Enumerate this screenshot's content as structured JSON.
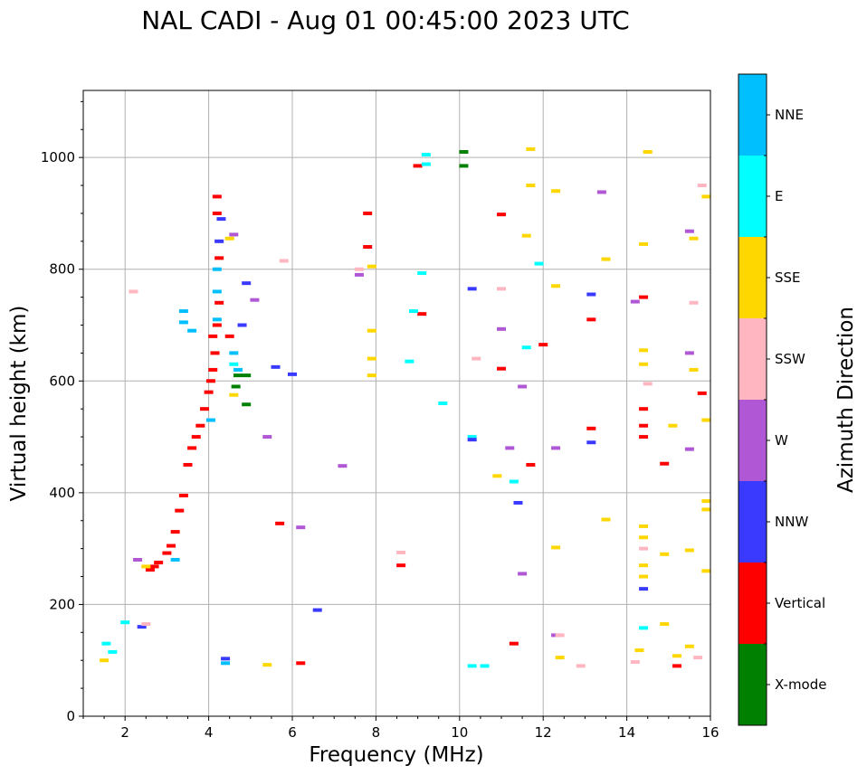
{
  "chart_data": {
    "type": "scatter",
    "title": "NAL CADI - Aug 01 00:45:00 2023 UTC",
    "xlabel": "Frequency (MHz)",
    "ylabel": "Virtual height (km)",
    "xlim": [
      1,
      16
    ],
    "ylim": [
      0,
      1120
    ],
    "xticks": [
      2,
      4,
      6,
      8,
      10,
      12,
      14,
      16
    ],
    "yticks": [
      0,
      200,
      400,
      600,
      800,
      1000
    ],
    "grid": true,
    "colorbar": {
      "label": "Azimuth Direction",
      "categories": [
        {
          "name": "X-mode",
          "color": "#008000"
        },
        {
          "name": "Vertical",
          "color": "#ff0000"
        },
        {
          "name": "NNW",
          "color": "#3a3aff"
        },
        {
          "name": "W",
          "color": "#b057d6"
        },
        {
          "name": "SSW",
          "color": "#ffb6c1"
        },
        {
          "name": "SSE",
          "color": "#ffd700"
        },
        {
          "name": "E",
          "color": "#00ffff"
        },
        {
          "name": "NNE",
          "color": "#00bfff"
        }
      ]
    },
    "series": [
      {
        "name": "Vertical",
        "points": [
          [
            2.6,
            262
          ],
          [
            2.7,
            268
          ],
          [
            2.8,
            275
          ],
          [
            3.0,
            292
          ],
          [
            3.1,
            305
          ],
          [
            3.2,
            330
          ],
          [
            3.3,
            368
          ],
          [
            3.4,
            395
          ],
          [
            3.5,
            450
          ],
          [
            3.6,
            480
          ],
          [
            3.7,
            500
          ],
          [
            3.8,
            520
          ],
          [
            3.9,
            550
          ],
          [
            4.0,
            580
          ],
          [
            4.05,
            600
          ],
          [
            4.1,
            620
          ],
          [
            4.15,
            650
          ],
          [
            4.1,
            680
          ],
          [
            4.2,
            700
          ],
          [
            4.25,
            740
          ],
          [
            4.25,
            820
          ],
          [
            4.2,
            900
          ],
          [
            4.2,
            930
          ],
          [
            7.8,
            900
          ],
          [
            7.8,
            840
          ],
          [
            8.6,
            270
          ],
          [
            9.1,
            720
          ],
          [
            9.0,
            985
          ],
          [
            11.3,
            130
          ],
          [
            11.7,
            450
          ],
          [
            12.0,
            665
          ],
          [
            13.15,
            710
          ],
          [
            13.15,
            515
          ],
          [
            14.4,
            550
          ],
          [
            14.4,
            520
          ],
          [
            14.4,
            500
          ],
          [
            14.4,
            750
          ],
          [
            14.9,
            452
          ],
          [
            15.2,
            90
          ],
          [
            15.8,
            578
          ],
          [
            6.2,
            95
          ],
          [
            5.7,
            345
          ],
          [
            11.0,
            622
          ],
          [
            11.0,
            898
          ],
          [
            4.5,
            680
          ]
        ]
      },
      {
        "name": "NNE",
        "points": [
          [
            3.4,
            725
          ],
          [
            3.4,
            705
          ],
          [
            4.2,
            710
          ],
          [
            4.2,
            760
          ],
          [
            4.2,
            800
          ],
          [
            3.6,
            690
          ],
          [
            4.05,
            530
          ],
          [
            3.2,
            280
          ],
          [
            4.4,
            95
          ],
          [
            4.7,
            620
          ],
          [
            4.6,
            650
          ]
        ]
      },
      {
        "name": "E",
        "points": [
          [
            1.55,
            130
          ],
          [
            1.7,
            115
          ],
          [
            2.0,
            168
          ],
          [
            4.6,
            630
          ],
          [
            8.9,
            725
          ],
          [
            8.8,
            635
          ],
          [
            9.6,
            560
          ],
          [
            10.3,
            500
          ],
          [
            10.3,
            90
          ],
          [
            10.6,
            90
          ],
          [
            11.3,
            420
          ],
          [
            11.6,
            660
          ],
          [
            14.4,
            158
          ],
          [
            9.2,
            1005
          ],
          [
            9.2,
            988
          ],
          [
            9.1,
            793
          ],
          [
            11.9,
            810
          ]
        ]
      },
      {
        "name": "NNW",
        "points": [
          [
            2.4,
            160
          ],
          [
            4.25,
            850
          ],
          [
            4.3,
            890
          ],
          [
            4.8,
            700
          ],
          [
            5.6,
            625
          ],
          [
            6.0,
            612
          ],
          [
            10.3,
            765
          ],
          [
            10.3,
            495
          ],
          [
            11.4,
            382
          ],
          [
            13.15,
            755
          ],
          [
            13.15,
            490
          ],
          [
            14.4,
            228
          ],
          [
            4.4,
            103
          ],
          [
            4.9,
            775
          ],
          [
            6.6,
            190
          ]
        ]
      },
      {
        "name": "W",
        "points": [
          [
            2.3,
            280
          ],
          [
            4.6,
            862
          ],
          [
            5.1,
            745
          ],
          [
            5.4,
            500
          ],
          [
            7.2,
            448
          ],
          [
            7.6,
            790
          ],
          [
            11.2,
            480
          ],
          [
            11.5,
            255
          ],
          [
            12.3,
            480
          ],
          [
            12.3,
            145
          ],
          [
            13.4,
            938
          ],
          [
            14.2,
            742
          ],
          [
            15.5,
            868
          ],
          [
            15.5,
            650
          ],
          [
            15.5,
            478
          ],
          [
            11.0,
            693
          ],
          [
            11.5,
            590
          ],
          [
            6.2,
            338
          ]
        ]
      },
      {
        "name": "SSW",
        "points": [
          [
            2.2,
            760
          ],
          [
            2.5,
            165
          ],
          [
            5.8,
            815
          ],
          [
            7.6,
            800
          ],
          [
            8.6,
            293
          ],
          [
            10.4,
            640
          ],
          [
            11.0,
            765
          ],
          [
            12.4,
            145
          ],
          [
            12.9,
            90
          ],
          [
            14.5,
            595
          ],
          [
            14.4,
            300
          ],
          [
            14.2,
            97
          ],
          [
            15.6,
            740
          ],
          [
            15.7,
            105
          ],
          [
            15.8,
            950
          ]
        ]
      },
      {
        "name": "SSE",
        "points": [
          [
            1.5,
            100
          ],
          [
            2.5,
            268
          ],
          [
            4.6,
            575
          ],
          [
            4.5,
            855
          ],
          [
            5.4,
            92
          ],
          [
            7.9,
            610
          ],
          [
            7.9,
            640
          ],
          [
            7.9,
            805
          ],
          [
            7.9,
            690
          ],
          [
            10.9,
            430
          ],
          [
            11.7,
            1015
          ],
          [
            11.7,
            950
          ],
          [
            11.6,
            860
          ],
          [
            12.3,
            940
          ],
          [
            12.3,
            770
          ],
          [
            12.3,
            302
          ],
          [
            12.4,
            105
          ],
          [
            13.5,
            352
          ],
          [
            13.5,
            818
          ],
          [
            14.4,
            340
          ],
          [
            14.4,
            320
          ],
          [
            14.4,
            270
          ],
          [
            14.4,
            250
          ],
          [
            14.4,
            630
          ],
          [
            14.4,
            655
          ],
          [
            14.4,
            845
          ],
          [
            14.5,
            1010
          ],
          [
            14.3,
            118
          ],
          [
            14.9,
            165
          ],
          [
            14.9,
            290
          ],
          [
            15.2,
            108
          ],
          [
            15.5,
            125
          ],
          [
            15.5,
            297
          ],
          [
            15.6,
            620
          ],
          [
            15.6,
            855
          ],
          [
            15.9,
            370
          ],
          [
            15.9,
            385
          ],
          [
            15.9,
            260
          ],
          [
            15.9,
            930
          ],
          [
            15.9,
            530
          ],
          [
            15.1,
            520
          ]
        ]
      },
      {
        "name": "X-mode",
        "points": [
          [
            10.1,
            1010
          ],
          [
            10.1,
            985
          ],
          [
            4.7,
            610
          ],
          [
            4.65,
            590
          ],
          [
            4.9,
            610
          ],
          [
            4.9,
            558
          ]
        ]
      }
    ]
  }
}
